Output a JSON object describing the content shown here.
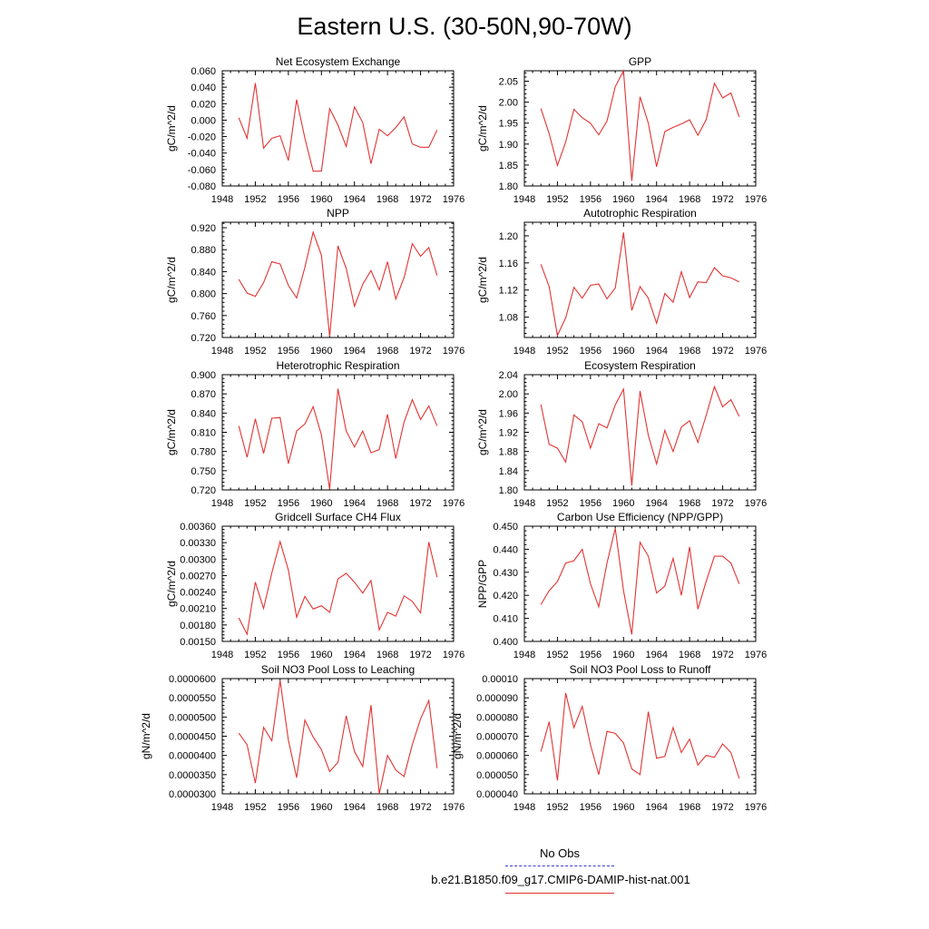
{
  "title": "Eastern U.S. (30-50N,90-70W)",
  "legend": {
    "obs_label": "No Obs",
    "obs_color": "#3a3ad6",
    "model_label": "b.e21.B1850.f09_g17.CMIP6-DAMIP-hist-nat.001",
    "model_color": "#e33333"
  },
  "chart_data": [
    {
      "type": "line",
      "title": "Net Ecosystem Exchange",
      "ylabel": "gC/m^2/d",
      "xlim": [
        1948,
        1976
      ],
      "xticks": [
        "1948",
        "1952",
        "1956",
        "1960",
        "1964",
        "1968",
        "1972",
        "1976"
      ],
      "ylim": [
        -0.08,
        0.06
      ],
      "yticks": [
        "-0.080",
        "-0.060",
        "-0.040",
        "-0.020",
        "0.000",
        "0.020",
        "0.040",
        "0.060"
      ],
      "x": [
        1950,
        1951,
        1952,
        1953,
        1954,
        1955,
        1956,
        1957,
        1958,
        1959,
        1960,
        1961,
        1962,
        1963,
        1964,
        1965,
        1966,
        1967,
        1968,
        1969,
        1970,
        1971,
        1972,
        1973,
        1974
      ],
      "values": [
        0.003,
        -0.022,
        0.045,
        -0.034,
        -0.022,
        -0.019,
        -0.049,
        0.025,
        -0.022,
        -0.062,
        -0.062,
        0.014,
        -0.006,
        -0.032,
        0.016,
        -0.003,
        -0.053,
        -0.011,
        -0.019,
        -0.009,
        0.004,
        -0.029,
        -0.033,
        -0.033,
        -0.012
      ]
    },
    {
      "type": "line",
      "title": "GPP",
      "ylabel": "gC/m^2/d",
      "xlim": [
        1948,
        1976
      ],
      "xticks": [
        "1948",
        "1952",
        "1956",
        "1960",
        "1964",
        "1968",
        "1972",
        "1976"
      ],
      "ylim": [
        1.8,
        2.075
      ],
      "yticks": [
        "1.80",
        "1.85",
        "1.90",
        "1.95",
        "2.00",
        "2.05"
      ],
      "x": [
        1950,
        1951,
        1952,
        1953,
        1954,
        1955,
        1956,
        1957,
        1958,
        1959,
        1960,
        1961,
        1962,
        1963,
        1964,
        1965,
        1966,
        1967,
        1968,
        1969,
        1970,
        1971,
        1972,
        1973,
        1974
      ],
      "values": [
        1.985,
        1.925,
        1.849,
        1.905,
        1.983,
        1.963,
        1.95,
        1.922,
        1.955,
        2.037,
        2.075,
        1.812,
        2.013,
        1.95,
        1.846,
        1.93,
        1.94,
        1.948,
        1.958,
        1.921,
        1.958,
        2.045,
        2.01,
        2.022,
        1.965
      ]
    },
    {
      "type": "line",
      "title": "NPP",
      "ylabel": "gC/m^2/d",
      "xlim": [
        1948,
        1976
      ],
      "xticks": [
        "1948",
        "1952",
        "1956",
        "1960",
        "1964",
        "1968",
        "1972",
        "1976"
      ],
      "ylim": [
        0.72,
        0.93
      ],
      "yticks": [
        "0.720",
        "0.760",
        "0.800",
        "0.840",
        "0.880",
        "0.920"
      ],
      "x": [
        1950,
        1951,
        1952,
        1953,
        1954,
        1955,
        1956,
        1957,
        1958,
        1959,
        1960,
        1961,
        1962,
        1963,
        1964,
        1965,
        1966,
        1967,
        1968,
        1969,
        1970,
        1971,
        1972,
        1973,
        1974
      ],
      "values": [
        0.826,
        0.801,
        0.795,
        0.82,
        0.858,
        0.854,
        0.815,
        0.792,
        0.848,
        0.912,
        0.87,
        0.722,
        0.887,
        0.846,
        0.777,
        0.817,
        0.842,
        0.807,
        0.858,
        0.79,
        0.829,
        0.891,
        0.868,
        0.884,
        0.833
      ]
    },
    {
      "type": "line",
      "title": "Autotrophic Respiration",
      "ylabel": "gC/m^2/d",
      "xlim": [
        1948,
        1976
      ],
      "xticks": [
        "1948",
        "1952",
        "1956",
        "1960",
        "1964",
        "1968",
        "1972",
        "1976"
      ],
      "ylim": [
        1.05,
        1.22
      ],
      "yticks": [
        "1.08",
        "1.12",
        "1.16",
        "1.20"
      ],
      "x": [
        1950,
        1951,
        1952,
        1953,
        1954,
        1955,
        1956,
        1957,
        1958,
        1959,
        1960,
        1961,
        1962,
        1963,
        1964,
        1965,
        1966,
        1967,
        1968,
        1969,
        1970,
        1971,
        1972,
        1973,
        1974
      ],
      "values": [
        1.158,
        1.125,
        1.053,
        1.079,
        1.124,
        1.108,
        1.127,
        1.129,
        1.107,
        1.123,
        1.205,
        1.09,
        1.125,
        1.108,
        1.071,
        1.115,
        1.102,
        1.147,
        1.109,
        1.132,
        1.131,
        1.153,
        1.141,
        1.138,
        1.132
      ]
    },
    {
      "type": "line",
      "title": "Heterotrophic Respiration",
      "ylabel": "gC/m^2/d",
      "xlim": [
        1948,
        1976
      ],
      "xticks": [
        "1948",
        "1952",
        "1956",
        "1960",
        "1964",
        "1968",
        "1972",
        "1976"
      ],
      "ylim": [
        0.72,
        0.9
      ],
      "yticks": [
        "0.720",
        "0.750",
        "0.780",
        "0.810",
        "0.840",
        "0.870",
        "0.900"
      ],
      "x": [
        1950,
        1951,
        1952,
        1953,
        1954,
        1955,
        1956,
        1957,
        1958,
        1959,
        1960,
        1961,
        1962,
        1963,
        1964,
        1965,
        1966,
        1967,
        1968,
        1969,
        1970,
        1971,
        1972,
        1973,
        1974
      ],
      "values": [
        0.82,
        0.771,
        0.831,
        0.777,
        0.832,
        0.833,
        0.761,
        0.812,
        0.823,
        0.85,
        0.806,
        0.721,
        0.878,
        0.812,
        0.787,
        0.812,
        0.778,
        0.783,
        0.838,
        0.769,
        0.826,
        0.861,
        0.83,
        0.851,
        0.82
      ]
    },
    {
      "type": "line",
      "title": "Ecosystem Respiration",
      "ylabel": "gC/m^2/d",
      "xlim": [
        1948,
        1976
      ],
      "xticks": [
        "1948",
        "1952",
        "1956",
        "1960",
        "1964",
        "1968",
        "1972",
        "1976"
      ],
      "ylim": [
        1.8,
        2.04
      ],
      "yticks": [
        "1.80",
        "1.84",
        "1.88",
        "1.92",
        "1.96",
        "2.00",
        "2.04"
      ],
      "x": [
        1950,
        1951,
        1952,
        1953,
        1954,
        1955,
        1956,
        1957,
        1958,
        1959,
        1960,
        1961,
        1962,
        1963,
        1964,
        1965,
        1966,
        1967,
        1968,
        1969,
        1970,
        1971,
        1972,
        1973,
        1974
      ],
      "values": [
        1.978,
        1.895,
        1.887,
        1.858,
        1.956,
        1.942,
        1.887,
        1.938,
        1.929,
        1.977,
        2.01,
        1.809,
        2.006,
        1.914,
        1.854,
        1.924,
        1.88,
        1.931,
        1.944,
        1.899,
        1.955,
        2.015,
        1.973,
        1.988,
        1.953
      ]
    },
    {
      "type": "line",
      "title": "Gridcell Surface CH4 Flux",
      "ylabel": "gC/m^2/d",
      "xlim": [
        1948,
        1976
      ],
      "xticks": [
        "1948",
        "1952",
        "1956",
        "1960",
        "1964",
        "1968",
        "1972",
        "1976"
      ],
      "ylim": [
        0.0015,
        0.0036
      ],
      "yticks": [
        "0.00150",
        "0.00180",
        "0.00210",
        "0.00240",
        "0.00270",
        "0.00300",
        "0.00330",
        "0.00360"
      ],
      "x": [
        1950,
        1951,
        1952,
        1953,
        1954,
        1955,
        1956,
        1957,
        1958,
        1959,
        1960,
        1961,
        1962,
        1963,
        1964,
        1965,
        1966,
        1967,
        1968,
        1969,
        1970,
        1971,
        1972,
        1973,
        1974
      ],
      "values": [
        0.00193,
        0.00163,
        0.00258,
        0.0021,
        0.00275,
        0.00332,
        0.0028,
        0.00194,
        0.00232,
        0.00209,
        0.00215,
        0.00203,
        0.00264,
        0.00274,
        0.00258,
        0.00238,
        0.00261,
        0.00171,
        0.00203,
        0.00196,
        0.00233,
        0.00223,
        0.00202,
        0.00331,
        0.00267
      ]
    },
    {
      "type": "line",
      "title": "Carbon Use Efficiency (NPP/GPP)",
      "ylabel": "NPP/GPP",
      "xlim": [
        1948,
        1976
      ],
      "xticks": [
        "1948",
        "1952",
        "1956",
        "1960",
        "1964",
        "1968",
        "1972",
        "1976"
      ],
      "ylim": [
        0.4,
        0.45
      ],
      "yticks": [
        "0.400",
        "0.410",
        "0.420",
        "0.430",
        "0.440",
        "0.450"
      ],
      "x": [
        1950,
        1951,
        1952,
        1953,
        1954,
        1955,
        1956,
        1957,
        1958,
        1959,
        1960,
        1961,
        1962,
        1963,
        1964,
        1965,
        1966,
        1967,
        1968,
        1969,
        1970,
        1971,
        1972,
        1973,
        1974
      ],
      "values": [
        0.416,
        0.422,
        0.426,
        0.434,
        0.435,
        0.44,
        0.425,
        0.415,
        0.434,
        0.449,
        0.422,
        0.403,
        0.443,
        0.437,
        0.421,
        0.424,
        0.436,
        0.42,
        0.441,
        0.414,
        0.426,
        0.437,
        0.437,
        0.434,
        0.425
      ]
    },
    {
      "type": "line",
      "title": "Soil NO3 Pool Loss to Leaching",
      "ylabel": "gN/m^2/d",
      "xlim": [
        1948,
        1976
      ],
      "xticks": [
        "1948",
        "1952",
        "1956",
        "1960",
        "1964",
        "1968",
        "1972",
        "1976"
      ],
      "ylim": [
        3e-05,
        6e-05
      ],
      "yticks": [
        "0.0000300",
        "0.0000350",
        "0.0000400",
        "0.0000450",
        "0.0000500",
        "0.0000550",
        "0.0000600"
      ],
      "x": [
        1950,
        1951,
        1952,
        1953,
        1954,
        1955,
        1956,
        1957,
        1958,
        1959,
        1960,
        1961,
        1962,
        1963,
        1964,
        1965,
        1966,
        1967,
        1968,
        1969,
        1970,
        1971,
        1972,
        1973,
        1974
      ],
      "values": [
        4.58e-05,
        4.28e-05,
        3.28e-05,
        4.73e-05,
        4.38e-05,
        5.95e-05,
        4.4e-05,
        3.42e-05,
        4.92e-05,
        4.48e-05,
        4.15e-05,
        3.58e-05,
        3.82e-05,
        5.03e-05,
        4.1e-05,
        3.71e-05,
        5.31e-05,
        3e-05,
        4e-05,
        3.62e-05,
        3.45e-05,
        4.28e-05,
        4.95e-05,
        5.43e-05,
        3.67e-05
      ]
    },
    {
      "type": "line",
      "title": "Soil NO3 Pool Loss to Runoff",
      "ylabel": "gN/m^2/d",
      "xlim": [
        1948,
        1976
      ],
      "xticks": [
        "1948",
        "1952",
        "1956",
        "1960",
        "1964",
        "1968",
        "1972",
        "1976"
      ],
      "ylim": [
        4e-05,
        0.0001
      ],
      "yticks": [
        "0.000040",
        "0.000050",
        "0.000060",
        "0.000070",
        "0.000080",
        "0.000090",
        "0.00010"
      ],
      "x": [
        1950,
        1951,
        1952,
        1953,
        1954,
        1955,
        1956,
        1957,
        1958,
        1959,
        1960,
        1961,
        1962,
        1963,
        1964,
        1965,
        1966,
        1967,
        1968,
        1969,
        1970,
        1971,
        1972,
        1973,
        1974
      ],
      "values": [
        6.2e-05,
        7.75e-05,
        4.7e-05,
        9.25e-05,
        7.45e-05,
        8.55e-05,
        6.55e-05,
        5e-05,
        7.25e-05,
        7.15e-05,
        6.65e-05,
        5.3e-05,
        5e-05,
        8.28e-05,
        5.85e-05,
        5.95e-05,
        7.45e-05,
        6.15e-05,
        6.85e-05,
        5.5e-05,
        6e-05,
        5.9e-05,
        6.6e-05,
        6.15e-05,
        4.8e-05
      ]
    }
  ]
}
